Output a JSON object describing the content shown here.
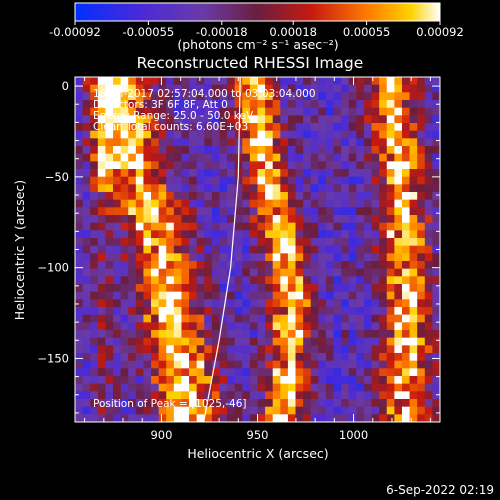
{
  "chart_data": {
    "type": "heatmap",
    "title": "Reconstructed RHESSI Image",
    "xlabel": "Heliocentric X (arcsec)",
    "ylabel": "Heliocentric Y (arcsec)",
    "xlim": [
      855,
      1045
    ],
    "ylim": [
      -185,
      5
    ],
    "xticks": [
      900,
      950,
      1000
    ],
    "xtick_labels": [
      "900",
      "950",
      "1000"
    ],
    "yticks": [
      0,
      -50,
      -100,
      -150
    ],
    "ytick_labels": [
      "0",
      "−50",
      "−100",
      "−150"
    ],
    "colorbar": {
      "range": [
        -0.00092,
        0.00092
      ],
      "ticks": [
        -0.00092,
        -0.00055,
        -0.00018,
        0.00018,
        0.00055,
        0.00092
      ],
      "tick_labels": [
        "-0.00092",
        "-0.00055",
        "-0.00018",
        "0.00018",
        "0.00055",
        "0.00092"
      ],
      "unit_label": "(photons cm⁻² s⁻¹ asec⁻²)"
    },
    "annotations": [
      "18-Jul-2017 02:57:04.000 to 03:03:04.000",
      "Detectors: 3F 6F 8F, Att 0",
      "Energy Range: 25.0 - 50.0 keV",
      "Clean    Total counts: 6.60E+03"
    ],
    "peak_label": "Position of Peak = [1025,-46]",
    "bright_bands": [
      {
        "name": "left",
        "track": [
          [
            878,
            5
          ],
          [
            884,
            -40
          ],
          [
            898,
            -80
          ],
          [
            905,
            -125
          ],
          [
            912,
            -160
          ],
          [
            915,
            -185
          ]
        ]
      },
      {
        "name": "middle",
        "track": [
          [
            948,
            5
          ],
          [
            952,
            -40
          ],
          [
            962,
            -80
          ],
          [
            968,
            -120
          ],
          [
            966,
            -160
          ],
          [
            962,
            -185
          ]
        ]
      },
      {
        "name": "right",
        "track": [
          [
            1020,
            -10
          ],
          [
            1024,
            -46
          ],
          [
            1026,
            -80
          ],
          [
            1028,
            -120
          ],
          [
            1028,
            -160
          ],
          [
            1026,
            -185
          ]
        ]
      }
    ],
    "limb_curve": [
      [
        941,
        5
      ],
      [
        940,
        -50
      ],
      [
        936,
        -100
      ],
      [
        930,
        -140
      ],
      [
        922,
        -185
      ]
    ],
    "colormap": "IDL color table 3 / blue-purple-red-yellow-white",
    "grid": false
  },
  "footer": {
    "date": "6-Sep-2022 02:19"
  }
}
